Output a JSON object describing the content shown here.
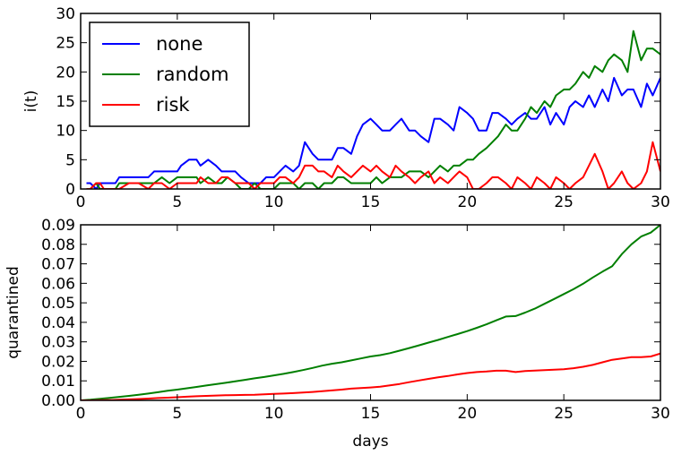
{
  "chart_data": [
    {
      "type": "line",
      "ylabel": "i(t)",
      "xlim": [
        0,
        30
      ],
      "ylim": [
        0,
        30
      ],
      "xticks": [
        0,
        5,
        10,
        15,
        20,
        25,
        30
      ],
      "yticks": [
        0,
        5,
        10,
        15,
        20,
        25,
        30
      ],
      "legend_position": "top-left",
      "series": [
        {
          "name": "none",
          "color": "#0000ff",
          "x": [
            0.3,
            0.5,
            0.8,
            1.0,
            1.2,
            1.5,
            1.8,
            2.0,
            2.5,
            3.0,
            3.5,
            3.8,
            4.2,
            4.6,
            5.0,
            5.2,
            5.6,
            6.0,
            6.2,
            6.6,
            7.0,
            7.3,
            7.6,
            8.0,
            8.3,
            8.7,
            9.0,
            9.3,
            9.6,
            10.0,
            10.3,
            10.6,
            11.0,
            11.3,
            11.6,
            12.0,
            12.3,
            12.6,
            13.0,
            13.3,
            13.6,
            14.0,
            14.3,
            14.6,
            15.0,
            15.3,
            15.6,
            16.0,
            16.3,
            16.6,
            17.0,
            17.3,
            17.6,
            18.0,
            18.3,
            18.6,
            19.0,
            19.3,
            19.6,
            20.0,
            20.3,
            20.6,
            21.0,
            21.3,
            21.6,
            22.0,
            22.3,
            22.6,
            23.0,
            23.3,
            23.6,
            24.0,
            24.3,
            24.6,
            25.0,
            25.3,
            25.6,
            26.0,
            26.3,
            26.6,
            27.0,
            27.3,
            27.6,
            28.0,
            28.3,
            28.6,
            29.0,
            29.3,
            29.6,
            30.0
          ],
          "y": [
            1,
            1,
            0,
            1,
            1,
            1,
            1,
            2,
            2,
            2,
            2,
            3,
            3,
            3,
            3,
            4,
            5,
            5,
            4,
            5,
            4,
            3,
            3,
            3,
            2,
            1,
            1,
            1,
            2,
            2,
            3,
            4,
            3,
            4,
            8,
            6,
            5,
            5,
            5,
            7,
            7,
            6,
            9,
            11,
            12,
            11,
            10,
            10,
            11,
            12,
            10,
            10,
            9,
            8,
            12,
            12,
            11,
            10,
            14,
            13,
            12,
            10,
            10,
            13,
            13,
            12,
            11,
            12,
            13,
            12,
            12,
            14,
            11,
            13,
            11,
            14,
            15,
            14,
            16,
            14,
            17,
            15,
            19,
            16,
            17,
            17,
            14,
            18,
            16,
            19
          ]
        },
        {
          "name": "random",
          "color": "#007f00",
          "x": [
            0.3,
            0.5,
            0.8,
            1.0,
            1.2,
            1.5,
            1.8,
            2.0,
            2.5,
            3.0,
            3.5,
            3.8,
            4.2,
            4.6,
            5.0,
            5.2,
            5.6,
            6.0,
            6.2,
            6.6,
            7.0,
            7.3,
            7.6,
            8.0,
            8.3,
            8.7,
            9.0,
            9.3,
            9.6,
            10.0,
            10.3,
            10.6,
            11.0,
            11.3,
            11.6,
            12.0,
            12.3,
            12.6,
            13.0,
            13.3,
            13.6,
            14.0,
            14.3,
            14.6,
            15.0,
            15.3,
            15.6,
            16.0,
            16.3,
            16.6,
            17.0,
            17.3,
            17.6,
            18.0,
            18.3,
            18.6,
            19.0,
            19.3,
            19.6,
            20.0,
            20.3,
            20.6,
            21.0,
            21.3,
            21.6,
            22.0,
            22.3,
            22.6,
            23.0,
            23.3,
            23.6,
            24.0,
            24.3,
            24.6,
            25.0,
            25.3,
            25.6,
            26.0,
            26.3,
            26.6,
            27.0,
            27.3,
            27.6,
            28.0,
            28.3,
            28.6,
            29.0,
            29.3,
            29.6,
            30.0
          ],
          "y": [
            0,
            0,
            1,
            0,
            0,
            0,
            0,
            1,
            1,
            1,
            1,
            1,
            2,
            1,
            2,
            2,
            2,
            2,
            1,
            2,
            1,
            1,
            2,
            1,
            0,
            0,
            1,
            0,
            0,
            0,
            1,
            1,
            1,
            0,
            1,
            1,
            0,
            1,
            1,
            2,
            2,
            1,
            1,
            1,
            1,
            2,
            1,
            2,
            2,
            2,
            3,
            3,
            3,
            2,
            3,
            4,
            3,
            4,
            4,
            5,
            5,
            6,
            7,
            8,
            9,
            11,
            10,
            10,
            12,
            14,
            13,
            15,
            14,
            16,
            17,
            17,
            18,
            20,
            19,
            21,
            20,
            22,
            23,
            22,
            20,
            27,
            22,
            24,
            24,
            23
          ]
        },
        {
          "name": "risk",
          "color": "#ff0000",
          "x": [
            0.3,
            0.5,
            0.8,
            1.0,
            1.2,
            1.5,
            1.8,
            2.0,
            2.5,
            3.0,
            3.5,
            3.8,
            4.2,
            4.6,
            5.0,
            5.2,
            5.6,
            6.0,
            6.2,
            6.6,
            7.0,
            7.3,
            7.6,
            8.0,
            8.3,
            8.7,
            9.0,
            9.3,
            9.6,
            10.0,
            10.3,
            10.6,
            11.0,
            11.3,
            11.6,
            12.0,
            12.3,
            12.6,
            13.0,
            13.3,
            13.6,
            14.0,
            14.3,
            14.6,
            15.0,
            15.3,
            15.6,
            16.0,
            16.3,
            16.6,
            17.0,
            17.3,
            17.6,
            18.0,
            18.3,
            18.6,
            19.0,
            19.3,
            19.6,
            20.0,
            20.3,
            20.6,
            21.0,
            21.3,
            21.6,
            22.0,
            22.3,
            22.6,
            23.0,
            23.3,
            23.6,
            24.0,
            24.3,
            24.6,
            25.0,
            25.3,
            25.6,
            26.0,
            26.3,
            26.6,
            27.0,
            27.3,
            27.6,
            28.0,
            28.3,
            28.6,
            29.0,
            29.3,
            29.6,
            30.0
          ],
          "y": [
            0,
            0,
            1,
            1,
            0,
            0,
            0,
            0,
            1,
            1,
            0,
            1,
            1,
            0,
            1,
            1,
            1,
            1,
            2,
            1,
            1,
            2,
            2,
            1,
            1,
            1,
            0,
            1,
            1,
            1,
            2,
            2,
            1,
            2,
            4,
            4,
            3,
            3,
            2,
            4,
            3,
            2,
            3,
            4,
            3,
            4,
            3,
            2,
            4,
            3,
            2,
            1,
            2,
            3,
            1,
            2,
            1,
            2,
            3,
            2,
            0,
            0,
            1,
            2,
            2,
            1,
            0,
            2,
            1,
            0,
            2,
            1,
            0,
            2,
            1,
            0,
            1,
            2,
            4,
            6,
            3,
            0,
            1,
            3,
            1,
            0,
            1,
            3,
            8,
            3
          ]
        }
      ]
    },
    {
      "type": "line",
      "xlabel": "days",
      "ylabel": "quarantined",
      "xlim": [
        0,
        30
      ],
      "ylim": [
        0,
        0.09
      ],
      "xticks": [
        0,
        5,
        10,
        15,
        20,
        25,
        30
      ],
      "yticks": [
        "0.00",
        "0.01",
        "0.02",
        "0.03",
        "0.04",
        "0.05",
        "0.06",
        "0.07",
        "0.08",
        "0.09"
      ],
      "series": [
        {
          "color": "#007f00",
          "x": [
            0,
            0.5,
            1,
            1.5,
            2,
            2.5,
            3,
            3.5,
            4,
            4.5,
            5,
            5.5,
            6,
            6.5,
            7,
            7.5,
            8,
            8.5,
            9,
            9.5,
            10,
            10.5,
            11,
            11.5,
            12,
            12.5,
            13,
            13.5,
            14,
            14.5,
            15,
            15.5,
            16,
            16.5,
            17,
            17.5,
            18,
            18.5,
            19,
            19.5,
            20,
            20.5,
            21,
            21.5,
            22,
            22.5,
            23,
            23.5,
            24,
            24.5,
            25,
            25.5,
            26,
            26.5,
            27,
            27.5,
            28,
            28.5,
            29,
            29.5,
            30
          ],
          "y": [
            0,
            0.0003,
            0.0008,
            0.0013,
            0.0018,
            0.0023,
            0.0029,
            0.0035,
            0.0042,
            0.0049,
            0.0055,
            0.0062,
            0.0069,
            0.0076,
            0.0083,
            0.009,
            0.0098,
            0.0105,
            0.0113,
            0.012,
            0.0128,
            0.0136,
            0.0145,
            0.0155,
            0.0166,
            0.0178,
            0.0188,
            0.0195,
            0.0205,
            0.0215,
            0.0225,
            0.0232,
            0.0242,
            0.0255,
            0.0268,
            0.0282,
            0.0296,
            0.031,
            0.0325,
            0.034,
            0.0355,
            0.0372,
            0.039,
            0.041,
            0.043,
            0.0432,
            0.045,
            0.047,
            0.0495,
            0.052,
            0.0545,
            0.057,
            0.0598,
            0.063,
            0.066,
            0.0688,
            0.075,
            0.08,
            0.084,
            0.086,
            0.09
          ]
        },
        {
          "color": "#ff0000",
          "x": [
            0,
            0.5,
            1,
            1.5,
            2,
            2.5,
            3,
            3.5,
            4,
            4.5,
            5,
            5.5,
            6,
            6.5,
            7,
            7.5,
            8,
            8.5,
            9,
            9.5,
            10,
            10.5,
            11,
            11.5,
            12,
            12.5,
            13,
            13.5,
            14,
            14.5,
            15,
            15.5,
            16,
            16.5,
            17,
            17.5,
            18,
            18.5,
            19,
            19.5,
            20,
            20.5,
            21,
            21.5,
            22,
            22.5,
            23,
            23.5,
            24,
            24.5,
            25,
            25.5,
            26,
            26.5,
            27,
            27.5,
            28,
            28.5,
            29,
            29.5,
            30
          ],
          "y": [
            0,
            0,
            0.0001,
            0.0002,
            0.0003,
            0.0005,
            0.0007,
            0.0009,
            0.0012,
            0.0014,
            0.0016,
            0.0019,
            0.0021,
            0.0023,
            0.0025,
            0.0026,
            0.0027,
            0.0028,
            0.0029,
            0.0031,
            0.0033,
            0.0035,
            0.0037,
            0.004,
            0.0043,
            0.0047,
            0.0051,
            0.0055,
            0.006,
            0.0063,
            0.0066,
            0.007,
            0.0077,
            0.0084,
            0.0093,
            0.0102,
            0.011,
            0.0118,
            0.0125,
            0.0133,
            0.014,
            0.0145,
            0.0148,
            0.0152,
            0.0152,
            0.0145,
            0.015,
            0.0153,
            0.0155,
            0.0157,
            0.016,
            0.0165,
            0.0172,
            0.0182,
            0.0195,
            0.0208,
            0.0215,
            0.0222,
            0.0222,
            0.0225,
            0.024
          ]
        }
      ]
    }
  ]
}
